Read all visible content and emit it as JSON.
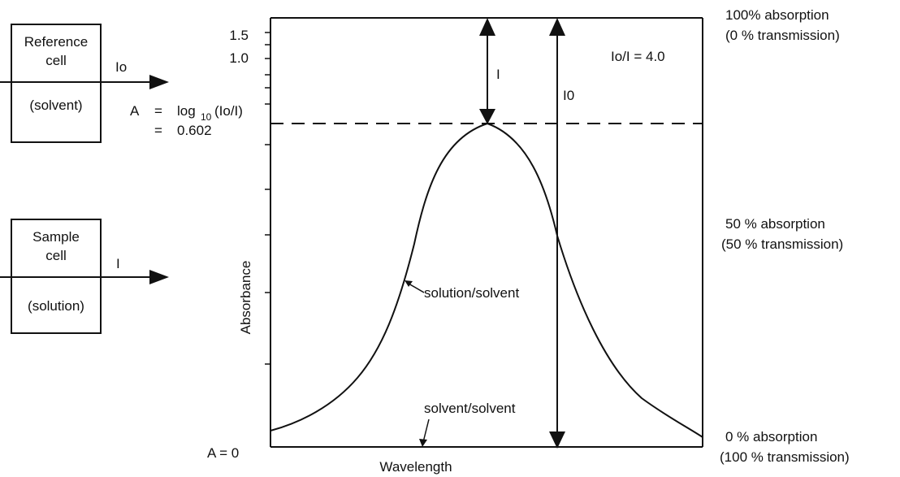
{
  "reference_cell": {
    "title_line1": "Reference",
    "title_line2": "cell",
    "content": "(solvent)",
    "beam_label": "Io"
  },
  "sample_cell": {
    "title_line1": "Sample",
    "title_line2": "cell",
    "content": "(solution)",
    "beam_label": "I"
  },
  "equation": {
    "lhs": "A",
    "eq": "=",
    "log": "log",
    "base": "10",
    "arg": "(Io/I)",
    "result_eq": "=",
    "result": "0.602"
  },
  "chart": {
    "ylabel": "Absorbance",
    "xlabel": "Wavelength",
    "ytick_labels": [
      "1.5",
      "1.0"
    ],
    "zero_label": "A  =  0",
    "ratio_label": "Io/I  =  4.0",
    "arrow_I_label": "I",
    "arrow_I0_label": "I0",
    "curve_label": "solution/solvent",
    "baseline_label": "solvent/solvent"
  },
  "right_labels": {
    "top_line1": "100% absorption",
    "top_line2": "(0 % transmission)",
    "mid_line1": "50 % absorption",
    "mid_line2": "(50 % transmission)",
    "bottom_line1": "0 % absorption",
    "bottom_line2": "(100 % transmission)"
  },
  "chart_data": {
    "type": "line",
    "xlabel": "Wavelength",
    "ylabel": "Absorbance",
    "yticks_labeled": [
      1.0,
      1.5
    ],
    "series": [
      {
        "name": "solution/solvent"
      },
      {
        "name": "solvent/solvent"
      }
    ],
    "annotations": [
      "Io/I = 4.0",
      "A = 0"
    ]
  }
}
